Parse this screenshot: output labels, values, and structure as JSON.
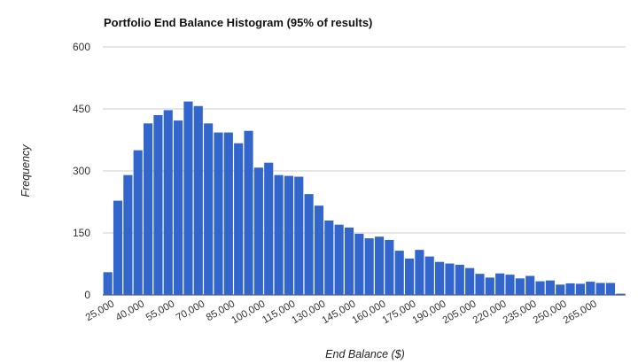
{
  "chart_data": {
    "type": "bar",
    "title": "Portfolio End Balance Histogram (95% of results)",
    "xlabel": "End Balance ($)",
    "ylabel": "Frequency",
    "ylim": [
      0,
      600
    ],
    "yticks": [
      "0",
      "150",
      "300",
      "450",
      "600"
    ],
    "xtick_labels": [
      "25,000",
      "40,000",
      "55,000",
      "70,000",
      "85,000",
      "100,000",
      "115,000",
      "130,000",
      "145,000",
      "160,000",
      "175,000",
      "190,000",
      "205,000",
      "220,000",
      "235,000",
      "250,000",
      "265,000"
    ],
    "grid": true,
    "bar_color": "#3366cc",
    "series": [
      {
        "values": [
          55,
          228,
          290,
          350,
          415,
          435,
          447,
          422,
          468,
          457,
          415,
          393,
          393,
          367,
          397,
          308,
          320,
          290,
          288,
          286,
          244,
          216,
          180,
          170,
          163,
          148,
          137,
          141,
          133,
          107,
          88,
          109,
          93,
          80,
          76,
          73,
          65,
          51,
          42,
          52,
          49,
          40,
          46,
          33,
          35,
          25,
          28,
          27,
          32,
          29,
          29,
          3
        ]
      }
    ]
  }
}
